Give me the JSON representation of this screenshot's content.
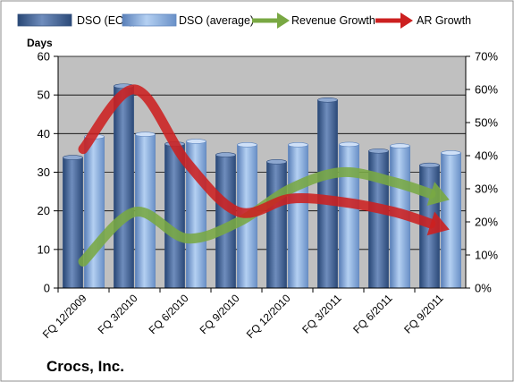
{
  "chart_data": {
    "type": "bar",
    "categories": [
      "FQ 12/2009",
      "FQ 3/2010",
      "FQ 6/2010",
      "FQ 9/2010",
      "FQ 12/2010",
      "FQ 3/2011",
      "FQ 6/2011",
      "FQ 9/2011"
    ],
    "series": [
      {
        "name": "DSO (EOQ)",
        "type": "bar",
        "axis": "left",
        "values": [
          33.8,
          52.3,
          37.3,
          34.5,
          32.7,
          48.7,
          35.5,
          31.8
        ]
      },
      {
        "name": "DSO (average)",
        "type": "bar",
        "axis": "left",
        "values": [
          39.2,
          39.8,
          38.0,
          37.1,
          37.1,
          37.2,
          36.8,
          35.0
        ]
      },
      {
        "name": "Revenue Growth",
        "type": "arrow-line",
        "axis": "right",
        "values": [
          8,
          23,
          15,
          20,
          30,
          35,
          32,
          27
        ]
      },
      {
        "name": "AR Growth",
        "type": "arrow-line",
        "axis": "right",
        "values": [
          42,
          60,
          38,
          23,
          27,
          26,
          23,
          18
        ]
      }
    ],
    "ylabel": "Days",
    "ylim": [
      0,
      60
    ],
    "yticks": [
      "0",
      "10",
      "20",
      "30",
      "40",
      "50",
      "60"
    ],
    "y2lim": [
      0,
      70
    ],
    "y2ticks": [
      "0%",
      "10%",
      "20%",
      "30%",
      "40%",
      "50%",
      "60%",
      "70%"
    ],
    "grid": true,
    "legend_position": "top",
    "company": "Crocs, Inc."
  },
  "colors": {
    "plot_bg": "#c0c0c0",
    "bar_eoq_light": "#6b88b8",
    "bar_eoq_dark": "#33507e",
    "bar_avg_light": "#a9c6ec",
    "bar_avg_dark": "#5f86bf",
    "revenue_arrow": "#79a843",
    "ar_arrow": "#cc2020"
  }
}
